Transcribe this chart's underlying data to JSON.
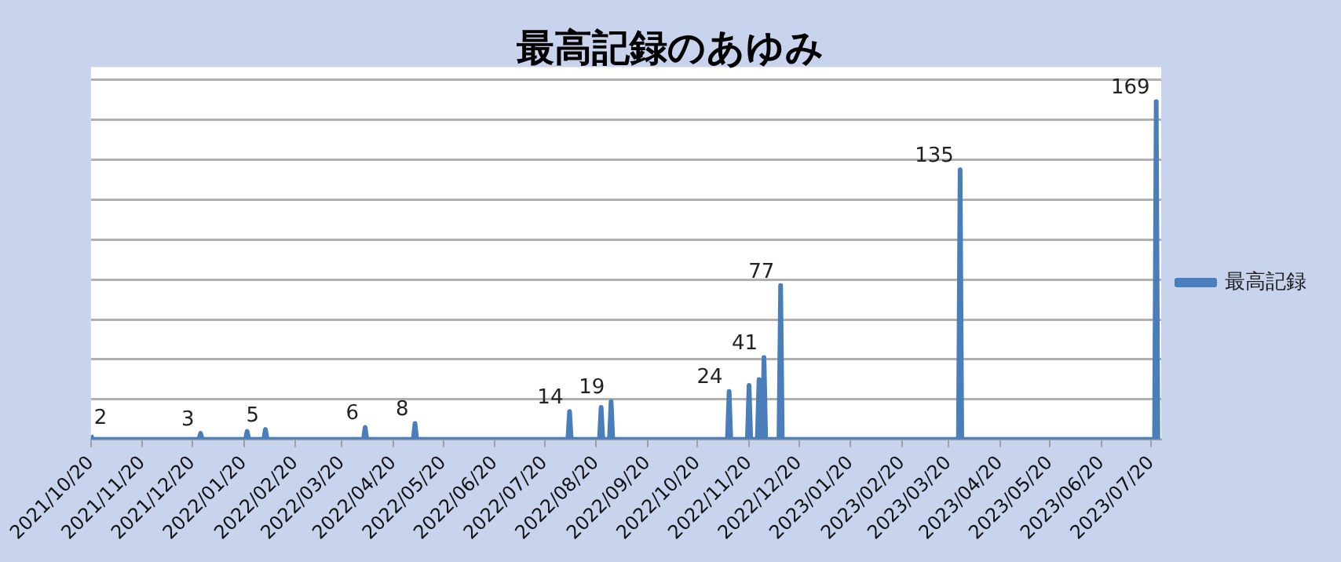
{
  "chart_data": {
    "type": "line",
    "title": "最高記録のあゆみ",
    "x": [
      "2021-10-20",
      "2021-10-21",
      "2021-12-24",
      "2021-12-25",
      "2021-12-26",
      "2022-01-21",
      "2022-01-22",
      "2022-01-23",
      "2022-02-01",
      "2022-02-02",
      "2022-02-03",
      "2022-04-02",
      "2022-04-03",
      "2022-04-04",
      "2022-05-02",
      "2022-05-03",
      "2022-05-04",
      "2022-08-03",
      "2022-08-04",
      "2022-08-05",
      "2022-08-22",
      "2022-08-23",
      "2022-08-24",
      "2022-08-28",
      "2022-08-29",
      "2022-08-30",
      "2022-11-07",
      "2022-11-08",
      "2022-11-09",
      "2022-11-19",
      "2022-11-20",
      "2022-11-21",
      "2022-11-25",
      "2022-11-26",
      "2022-11-27",
      "2022-11-28",
      "2022-11-29",
      "2022-11-30",
      "2022-12-08",
      "2022-12-09",
      "2022-12-10",
      "2023-03-26",
      "2023-03-27",
      "2023-03-28",
      "2023-07-22",
      "2023-07-23",
      "2023-07-24"
    ],
    "series": [
      {
        "name": "最高記録",
        "color": "#4a7ebb",
        "values": [
          2,
          0,
          0,
          3,
          0,
          0,
          4,
          0,
          0,
          5,
          0,
          0,
          6,
          0,
          0,
          8,
          0,
          0,
          14,
          0,
          0,
          16,
          0,
          0,
          19,
          0,
          0,
          24,
          0,
          0,
          27,
          0,
          0,
          30,
          0,
          0,
          41,
          0,
          0,
          77,
          0,
          0,
          135,
          0,
          0,
          169,
          0
        ],
        "value_labels": [
          "2",
          null,
          null,
          "3",
          null,
          null,
          null,
          null,
          null,
          "5",
          null,
          null,
          "6",
          null,
          null,
          "8",
          null,
          null,
          "14",
          null,
          null,
          null,
          null,
          null,
          "19",
          null,
          null,
          "24",
          null,
          null,
          null,
          null,
          null,
          null,
          null,
          null,
          "41",
          null,
          null,
          "77",
          null,
          null,
          "135",
          null,
          null,
          "169",
          null
        ]
      }
    ],
    "xlim": [
      "2021-10-20",
      "2023-07-26"
    ],
    "xticks": [
      {
        "value": "2021-10-20",
        "label": "2021/10/20"
      },
      {
        "value": "2021-11-20",
        "label": "2021/11/20"
      },
      {
        "value": "2021-12-20",
        "label": "2021/12/20"
      },
      {
        "value": "2022-01-20",
        "label": "2022/01/20"
      },
      {
        "value": "2022-02-20",
        "label": "2022/02/20"
      },
      {
        "value": "2022-03-20",
        "label": "2022/03/20"
      },
      {
        "value": "2022-04-20",
        "label": "2022/04/20"
      },
      {
        "value": "2022-05-20",
        "label": "2022/05/20"
      },
      {
        "value": "2022-06-20",
        "label": "2022/06/20"
      },
      {
        "value": "2022-07-20",
        "label": "2022/07/20"
      },
      {
        "value": "2022-08-20",
        "label": "2022/08/20"
      },
      {
        "value": "2022-09-20",
        "label": "2022/09/20"
      },
      {
        "value": "2022-10-20",
        "label": "2022/10/20"
      },
      {
        "value": "2022-11-20",
        "label": "2022/11/20"
      },
      {
        "value": "2022-12-20",
        "label": "2022/12/20"
      },
      {
        "value": "2023-01-20",
        "label": "2023/01/20"
      },
      {
        "value": "2023-02-20",
        "label": "2023/02/20"
      },
      {
        "value": "2023-03-20",
        "label": "2023/03/20"
      },
      {
        "value": "2023-04-20",
        "label": "2023/04/20"
      },
      {
        "value": "2023-05-20",
        "label": "2023/05/20"
      },
      {
        "value": "2023-06-20",
        "label": "2023/06/20"
      },
      {
        "value": "2023-07-20",
        "label": "2023/07/20"
      }
    ],
    "ylim": [
      0,
      180
    ],
    "yticks": [
      {
        "value": 0,
        "label": null
      },
      {
        "value": 20,
        "label": null
      },
      {
        "value": 40,
        "label": null
      },
      {
        "value": 60,
        "label": null
      },
      {
        "value": 80,
        "label": null
      },
      {
        "value": 100,
        "label": null
      },
      {
        "value": 120,
        "label": null
      },
      {
        "value": 140,
        "label": null
      },
      {
        "value": 160,
        "label": null
      },
      {
        "value": 180,
        "label": null
      }
    ],
    "tick_labels": "x",
    "grid": "y",
    "legend": "right",
    "marker": "none",
    "line_style": "solid"
  }
}
